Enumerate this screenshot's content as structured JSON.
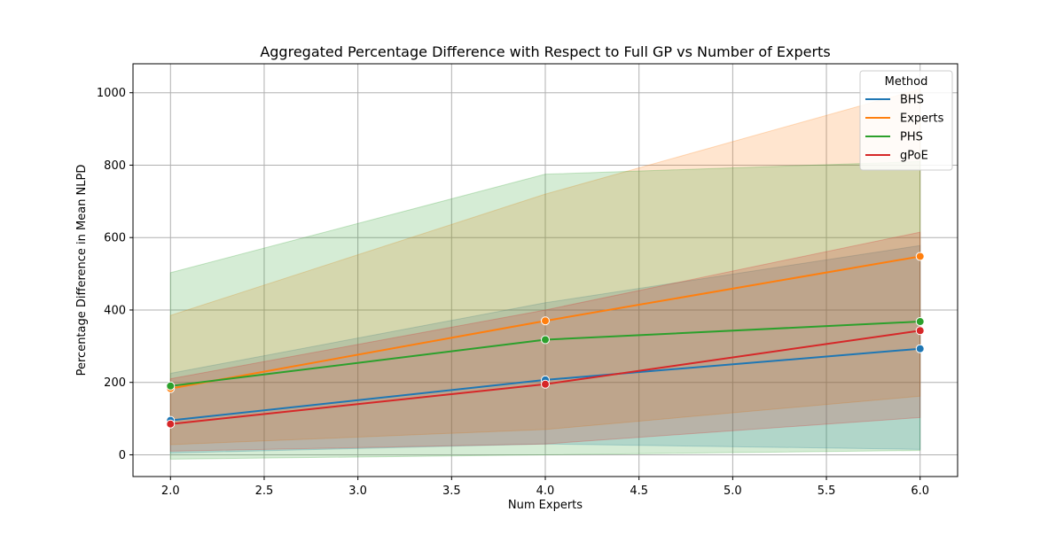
{
  "chart_data": {
    "type": "line",
    "title": "Aggregated Percentage Difference with Respect to Full GP vs Number of Experts",
    "xlabel": "Num Experts",
    "ylabel": "Percentage Difference in Mean NLPD",
    "xlim": [
      1.8,
      6.2
    ],
    "ylim": [
      -60,
      1080
    ],
    "x_ticks": [
      2.0,
      2.5,
      3.0,
      3.5,
      4.0,
      4.5,
      5.0,
      5.5,
      6.0
    ],
    "x_tick_labels": [
      "2.0",
      "2.5",
      "3.0",
      "3.5",
      "4.0",
      "4.5",
      "5.0",
      "5.5",
      "6.0"
    ],
    "y_ticks": [
      0,
      200,
      400,
      600,
      800,
      1000
    ],
    "y_tick_labels": [
      "0",
      "200",
      "400",
      "600",
      "800",
      "1000"
    ],
    "grid": true,
    "legend": {
      "title": "Method",
      "placement": "top-right"
    },
    "x": [
      2,
      4,
      6
    ],
    "series": [
      {
        "name": "BHS",
        "color": "#1f77b4",
        "values": [
          95,
          207,
          293
        ],
        "lower": [
          5,
          30,
          15
        ],
        "upper": [
          225,
          420,
          578
        ]
      },
      {
        "name": "Experts",
        "color": "#ff7f0e",
        "values": [
          183,
          370,
          548
        ],
        "lower": [
          28,
          70,
          162
        ],
        "upper": [
          385,
          720,
          1010
        ]
      },
      {
        "name": "PHS",
        "color": "#2ca02c",
        "values": [
          190,
          318,
          368
        ],
        "lower": [
          -12,
          0,
          12
        ],
        "upper": [
          503,
          775,
          810
        ]
      },
      {
        "name": "gPoE",
        "color": "#d62728",
        "values": [
          85,
          195,
          343
        ],
        "lower": [
          10,
          30,
          103
        ],
        "upper": [
          210,
          400,
          615
        ]
      }
    ]
  }
}
